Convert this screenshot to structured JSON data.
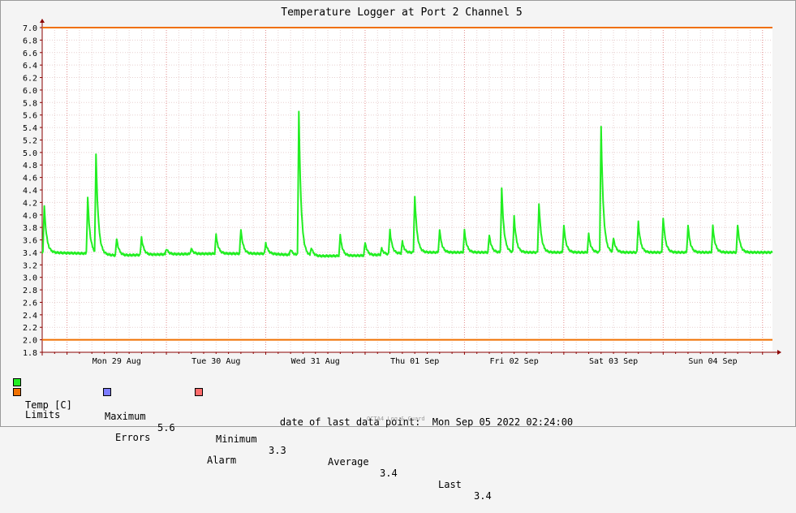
{
  "chart_data": {
    "type": "line",
    "title": "Temperature Logger at Port 2 Channel 5",
    "ylim": [
      1.8,
      7.0
    ],
    "yticks": [
      "7.0",
      "6.8",
      "6.6",
      "6.4",
      "6.2",
      "6.0",
      "5.8",
      "5.6",
      "5.4",
      "5.2",
      "5.0",
      "4.8",
      "4.6",
      "4.4",
      "4.2",
      "4.0",
      "3.8",
      "3.6",
      "3.4",
      "3.2",
      "3.0",
      "2.8",
      "2.6",
      "2.4",
      "2.2",
      "2.0",
      "1.8"
    ],
    "x_start": "Sun 28 Aug 2022 18:00",
    "x_end": "Mon 05 Sep 2022 02:24",
    "x_ticks": [
      "Mon 29 Aug",
      "Tue 30 Aug",
      "Wed 31 Aug",
      "Thu 01 Sep",
      "Fri 02 Sep",
      "Sat 03 Sep",
      "Sun 04 Sep"
    ],
    "grid": true,
    "limits": {
      "upper": 7.0,
      "lower": 2.0
    },
    "series": [
      {
        "name": "Temp [C]",
        "color": "#22ee22",
        "baseline": [
          {
            "t": "Sun 28 Aug 2022 18:00",
            "v": 3.4
          },
          {
            "t": "Mon 29 Aug 2022 06:00",
            "v": 3.38
          },
          {
            "t": "Mon 29 Aug 2022 12:00",
            "v": 3.35
          },
          {
            "t": "Tue 30 Aug 2022 00:00",
            "v": 3.37
          },
          {
            "t": "Tue 30 Aug 2022 12:00",
            "v": 3.38
          },
          {
            "t": "Wed 31 Aug 2022 00:00",
            "v": 3.38
          },
          {
            "t": "Wed 31 Aug 2022 06:00",
            "v": 3.36
          },
          {
            "t": "Wed 31 Aug 2022 12:00",
            "v": 3.34
          },
          {
            "t": "Thu 01 Sep 2022 00:00",
            "v": 3.35
          },
          {
            "t": "Thu 01 Sep 2022 06:00",
            "v": 3.37
          },
          {
            "t": "Thu 01 Sep 2022 12:00",
            "v": 3.4
          },
          {
            "t": "Mon 05 Sep 2022 02:24",
            "v": 3.4
          }
        ],
        "spikes": [
          {
            "t": "Sun 28 Aug 2022 18:30",
            "v": 4.15
          },
          {
            "t": "Mon 29 Aug 2022 05:00",
            "v": 4.28
          },
          {
            "t": "Mon 29 Aug 2022 07:00",
            "v": 4.98
          },
          {
            "t": "Mon 29 Aug 2022 12:00",
            "v": 3.62
          },
          {
            "t": "Mon 29 Aug 2022 18:00",
            "v": 3.64
          },
          {
            "t": "Tue 30 Aug 2022 00:00",
            "v": 3.46
          },
          {
            "t": "Tue 30 Aug 2022 06:00",
            "v": 3.46
          },
          {
            "t": "Tue 30 Aug 2022 12:00",
            "v": 3.68
          },
          {
            "t": "Tue 30 Aug 2022 18:00",
            "v": 3.77
          },
          {
            "t": "Wed 31 Aug 2022 00:00",
            "v": 3.55
          },
          {
            "t": "Wed 31 Aug 2022 06:00",
            "v": 3.45
          },
          {
            "t": "Wed 31 Aug 2022 08:00",
            "v": 5.64
          },
          {
            "t": "Wed 31 Aug 2022 11:00",
            "v": 3.48
          },
          {
            "t": "Wed 31 Aug 2022 18:00",
            "v": 3.67
          },
          {
            "t": "Thu 01 Sep 2022 00:00",
            "v": 3.56
          },
          {
            "t": "Thu 01 Sep 2022 04:00",
            "v": 3.46
          },
          {
            "t": "Thu 01 Sep 2022 06:00",
            "v": 3.76
          },
          {
            "t": "Thu 01 Sep 2022 09:00",
            "v": 3.57
          },
          {
            "t": "Thu 01 Sep 2022 12:00",
            "v": 4.31
          },
          {
            "t": "Thu 01 Sep 2022 18:00",
            "v": 3.76
          },
          {
            "t": "Fri 02 Sep 2022 00:00",
            "v": 3.75
          },
          {
            "t": "Fri 02 Sep 2022 06:00",
            "v": 3.68
          },
          {
            "t": "Fri 02 Sep 2022 09:00",
            "v": 4.43
          },
          {
            "t": "Fri 02 Sep 2022 12:00",
            "v": 3.98
          },
          {
            "t": "Fri 02 Sep 2022 18:00",
            "v": 4.19
          },
          {
            "t": "Sat 03 Sep 2022 00:00",
            "v": 3.83
          },
          {
            "t": "Sat 03 Sep 2022 06:00",
            "v": 3.69
          },
          {
            "t": "Sat 03 Sep 2022 09:00",
            "v": 5.43
          },
          {
            "t": "Sat 03 Sep 2022 12:00",
            "v": 3.63
          },
          {
            "t": "Sat 03 Sep 2022 18:00",
            "v": 3.89
          },
          {
            "t": "Sun 04 Sep 2022 00:00",
            "v": 3.96
          },
          {
            "t": "Sun 04 Sep 2022 06:00",
            "v": 3.83
          },
          {
            "t": "Sun 04 Sep 2022 12:00",
            "v": 3.82
          },
          {
            "t": "Sun 04 Sep 2022 18:00",
            "v": 3.84
          }
        ]
      }
    ]
  },
  "colors": {
    "background": "#f4f4f4",
    "plot_background": "#ffffff",
    "grid_minor": "#e7cfcf",
    "grid_major": "#e28b8b",
    "axis": "#8a0000",
    "limits": "#f07000",
    "errors": "#7b7bff",
    "alarm": "#ff6b6b",
    "temp": "#22ee22"
  },
  "legend": {
    "temp_label": "Temp [C]",
    "maximum_label": "Maximum",
    "maximum_value": "5.6",
    "minimum_label": "Minimum",
    "minimum_value": "3.3",
    "average_label": "Average",
    "average_value": "3.4",
    "last_label": "Last",
    "last_value": "3.4",
    "limits_label": "Limits",
    "errors_label": "Errors",
    "alarm_label": "Alarm"
  },
  "footer": {
    "last_point_label": "date of last data point:",
    "last_point_value": "Mon Sep 05 2022 02:24:00",
    "watermark": "OCTA4 Log & Guard"
  }
}
